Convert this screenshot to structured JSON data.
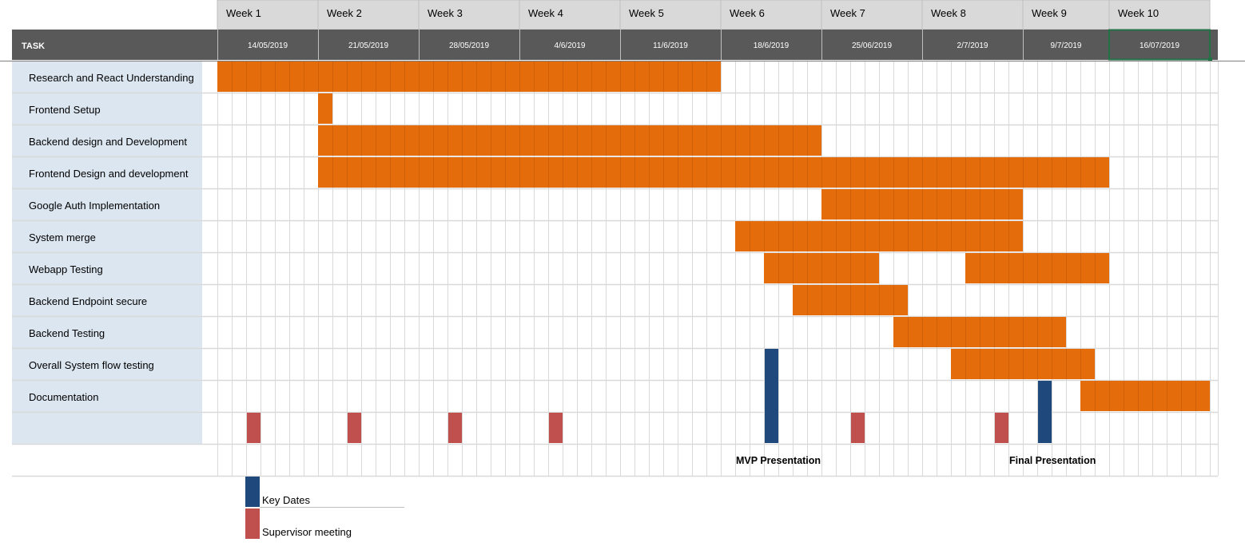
{
  "chart_data": {
    "type": "gantt",
    "header": {
      "task_label": "TASK"
    },
    "weeks": [
      {
        "label": "Week 1",
        "date": "14/05/2019",
        "days": 7
      },
      {
        "label": "Week 2",
        "date": "21/05/2019",
        "days": 7
      },
      {
        "label": "Week 3",
        "date": "28/05/2019",
        "days": 7
      },
      {
        "label": "Week 4",
        "date": "4/6/2019",
        "days": 7
      },
      {
        "label": "Week 5",
        "date": "11/6/2019",
        "days": 7
      },
      {
        "label": "Week 6",
        "date": "18/6/2019",
        "days": 7
      },
      {
        "label": "Week 7",
        "date": "25/06/2019",
        "days": 7
      },
      {
        "label": "Week 8",
        "date": "2/7/2019",
        "days": 7
      },
      {
        "label": "Week 9",
        "date": "9/7/2019",
        "days": 6
      },
      {
        "label": "Week 10",
        "date": "16/07/2019",
        "days": 7
      }
    ],
    "tasks": [
      {
        "name": "Research and React Understanding",
        "spans": [
          [
            1,
            35
          ]
        ]
      },
      {
        "name": "Frontend Setup",
        "spans": [
          [
            8,
            8
          ]
        ]
      },
      {
        "name": "Backend design and Development",
        "spans": [
          [
            8,
            42
          ]
        ]
      },
      {
        "name": "Frontend Design and development",
        "spans": [
          [
            8,
            62
          ]
        ]
      },
      {
        "name": "Google Auth Implementation",
        "spans": [
          [
            43,
            56
          ]
        ]
      },
      {
        "name": "System merge",
        "spans": [
          [
            37,
            56
          ]
        ]
      },
      {
        "name": "Webapp Testing",
        "spans": [
          [
            39,
            46
          ],
          [
            53,
            62
          ]
        ]
      },
      {
        "name": "Backend Endpoint secure",
        "spans": [
          [
            41,
            48
          ]
        ]
      },
      {
        "name": "Backend Testing",
        "spans": [
          [
            48,
            59
          ]
        ]
      },
      {
        "name": "Overall System flow testing",
        "spans": [
          [
            52,
            61
          ]
        ]
      },
      {
        "name": "Documentation",
        "spans": [
          [
            61,
            69
          ]
        ]
      }
    ],
    "supervisor_meetings": [
      3,
      10,
      17,
      24,
      45,
      55
    ],
    "key_dates": [
      {
        "day": 39,
        "start_task": 9,
        "label": "MVP Presentation"
      },
      {
        "day": 58,
        "start_task": 10,
        "label": "Final Presentation"
      }
    ],
    "legend": {
      "key_dates": "Key Dates",
      "supervisor": "Supervisor meeting"
    },
    "colors": {
      "task_bar": "#E46C0A",
      "key_date": "#1F497D",
      "supervisor": "#C0504D",
      "header_dark": "#595959",
      "header_light": "#D9D9D9",
      "task_bg": "#DCE6F1",
      "grid": "#D9D9D9"
    }
  }
}
